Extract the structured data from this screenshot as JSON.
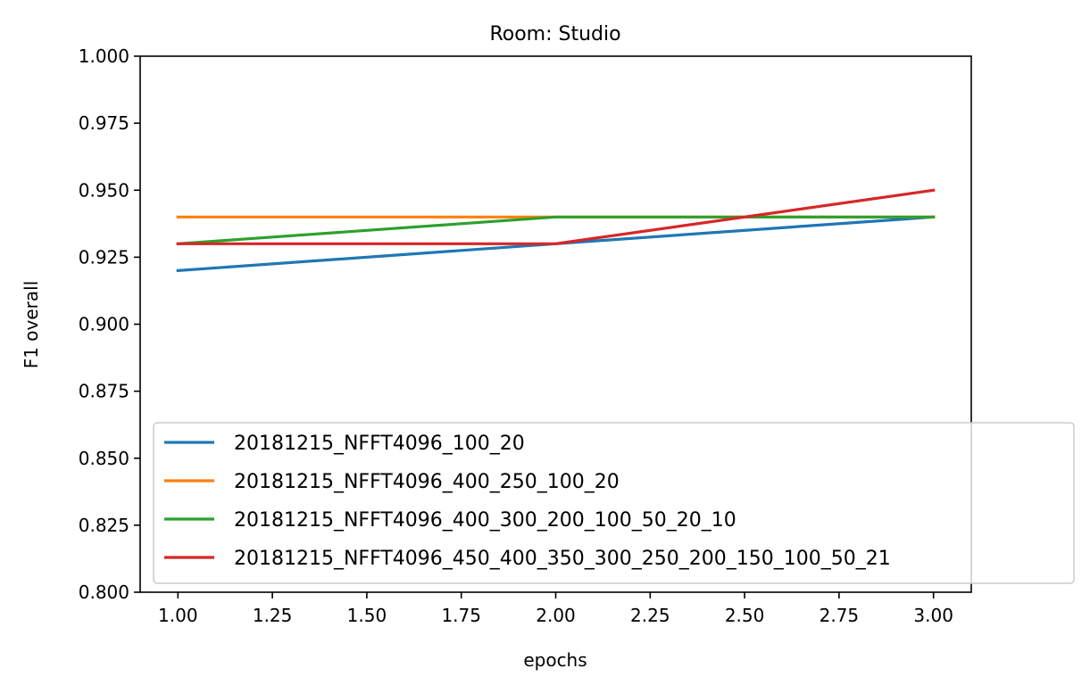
{
  "chart_data": {
    "type": "line",
    "title": "Room: Studio",
    "xlabel": "epochs",
    "ylabel": "F1 overall",
    "xlim": [
      0.9,
      3.1
    ],
    "ylim": [
      0.8,
      1.0
    ],
    "xticks": [
      1.0,
      1.25,
      1.5,
      1.75,
      2.0,
      2.25,
      2.5,
      2.75,
      3.0
    ],
    "xtick_labels": [
      "1.00",
      "1.25",
      "1.50",
      "1.75",
      "2.00",
      "2.25",
      "2.50",
      "2.75",
      "3.00"
    ],
    "yticks": [
      0.8,
      0.825,
      0.85,
      0.875,
      0.9,
      0.925,
      0.95,
      0.975,
      1.0
    ],
    "ytick_labels": [
      "0.800",
      "0.825",
      "0.850",
      "0.875",
      "0.900",
      "0.925",
      "0.950",
      "0.975",
      "1.000"
    ],
    "grid": false,
    "legend_position": "lower-left",
    "x": [
      1,
      2,
      3
    ],
    "series": [
      {
        "name": "20181215_NFFT4096_100_20",
        "color": "#1f77b4",
        "values": [
          0.92,
          0.93,
          0.94
        ]
      },
      {
        "name": "20181215_NFFT4096_400_250_100_20",
        "color": "#ff7f0e",
        "values": [
          0.94,
          0.94,
          0.94
        ]
      },
      {
        "name": "20181215_NFFT4096_400_300_200_100_50_20_10",
        "color": "#2ca02c",
        "values": [
          0.93,
          0.94,
          0.94
        ]
      },
      {
        "name": "20181215_NFFT4096_450_400_350_300_250_200_150_100_50_21",
        "color": "#d62728",
        "values": [
          0.93,
          0.93,
          0.95
        ]
      }
    ]
  }
}
